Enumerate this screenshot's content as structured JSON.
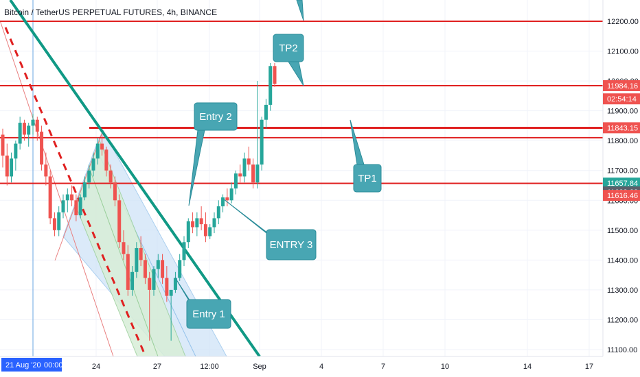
{
  "title": "Bitcoin / TetherUS PERPETUAL FUTURES, 4h, BINANCE",
  "colors": {
    "up": "#26a69a",
    "down": "#ef5350",
    "hline": "#e02020",
    "trend": "#109985",
    "note": "#48a6b3",
    "channel_blue": "#cfe4f7",
    "channel_green": "#d8eed8",
    "channel_red": "#f7d6d6"
  },
  "chart_data": {
    "type": "candlestick",
    "x_ticks": [
      "24",
      "27",
      "12:00",
      "Sep",
      "4",
      "7",
      "10",
      "14",
      "17"
    ],
    "date_label": "21 Aug '20",
    "time_label": "00:00",
    "y_ticks": [
      "12200.00",
      "12100.00",
      "12000.00",
      "11900.00",
      "11800.00",
      "11700.00",
      "11600.00",
      "11500.00",
      "11400.00",
      "11300.00",
      "11200.00",
      "11100.00"
    ],
    "ylim": [
      11080,
      12260
    ],
    "horizontal_lines": [
      12200,
      11984,
      11843,
      11810,
      11657
    ],
    "price_labels": [
      {
        "text": "11984.16",
        "price": 11984.16,
        "color": "#ef5350"
      },
      {
        "text": "02:54:14",
        "price": 11940,
        "color": "#ef5350"
      },
      {
        "text": "11843.15",
        "price": 11843.15,
        "color": "#ef5350"
      },
      {
        "text": "11657.84",
        "price": 11657.84,
        "color": "#26a69a"
      },
      {
        "text": "11628.23",
        "price": 11628.23,
        "color": "#5d606b"
      },
      {
        "text": "11616.46",
        "price": 11616.46,
        "color": "#ef5350"
      }
    ],
    "annotations": [
      "TP2",
      "Entry 2",
      "TP1",
      "ENTRY 3",
      "Entry 1"
    ],
    "candles": [
      [
        11820,
        11840,
        11710,
        11750
      ],
      [
        11750,
        11790,
        11650,
        11680
      ],
      [
        11680,
        11760,
        11660,
        11740
      ],
      [
        11740,
        11800,
        11700,
        11790
      ],
      [
        11790,
        11880,
        11770,
        11860
      ],
      [
        11860,
        11870,
        11800,
        11820
      ],
      [
        11820,
        11860,
        11780,
        11850
      ],
      [
        11850,
        11890,
        11820,
        11870
      ],
      [
        11870,
        11880,
        11800,
        11830
      ],
      [
        11830,
        11850,
        11700,
        11720
      ],
      [
        11720,
        11760,
        11650,
        11680
      ],
      [
        11680,
        11700,
        11520,
        11540
      ],
      [
        11540,
        11560,
        11480,
        11500
      ],
      [
        11500,
        11580,
        11480,
        11560
      ],
      [
        11560,
        11620,
        11540,
        11600
      ],
      [
        11600,
        11640,
        11560,
        11620
      ],
      [
        11620,
        11650,
        11580,
        11600
      ],
      [
        11600,
        11620,
        11530,
        11550
      ],
      [
        11550,
        11620,
        11540,
        11610
      ],
      [
        11610,
        11680,
        11600,
        11660
      ],
      [
        11660,
        11720,
        11640,
        11700
      ],
      [
        11700,
        11760,
        11680,
        11740
      ],
      [
        11740,
        11810,
        11720,
        11790
      ],
      [
        11790,
        11820,
        11750,
        11770
      ],
      [
        11770,
        11780,
        11680,
        11700
      ],
      [
        11700,
        11720,
        11640,
        11660
      ],
      [
        11660,
        11680,
        11580,
        11600
      ],
      [
        11600,
        11620,
        11440,
        11460
      ],
      [
        11460,
        11500,
        11400,
        11420
      ],
      [
        11420,
        11450,
        11280,
        11300
      ],
      [
        11300,
        11380,
        11280,
        11360
      ],
      [
        11360,
        11460,
        11340,
        11440
      ],
      [
        11440,
        11480,
        11380,
        11400
      ],
      [
        11400,
        11420,
        11320,
        11340
      ],
      [
        11340,
        11360,
        11130,
        11300
      ],
      [
        11300,
        11380,
        11280,
        11370
      ],
      [
        11370,
        11420,
        11340,
        11400
      ],
      [
        11400,
        11420,
        11320,
        11340
      ],
      [
        11340,
        11380,
        11260,
        11280
      ],
      [
        11280,
        11300,
        11130,
        11300
      ],
      [
        11300,
        11360,
        11290,
        11340
      ],
      [
        11340,
        11420,
        11330,
        11400
      ],
      [
        11400,
        11480,
        11380,
        11460
      ],
      [
        11460,
        11540,
        11440,
        11530
      ],
      [
        11530,
        11560,
        11490,
        11510
      ],
      [
        11510,
        11560,
        11480,
        11540
      ],
      [
        11540,
        11580,
        11500,
        11520
      ],
      [
        11520,
        11560,
        11460,
        11480
      ],
      [
        11480,
        11520,
        11470,
        11510
      ],
      [
        11510,
        11560,
        11490,
        11540
      ],
      [
        11540,
        11600,
        11520,
        11580
      ],
      [
        11580,
        11620,
        11560,
        11610
      ],
      [
        11610,
        11640,
        11580,
        11600
      ],
      [
        11600,
        11660,
        11590,
        11640
      ],
      [
        11640,
        11700,
        11620,
        11690
      ],
      [
        11690,
        11720,
        11660,
        11680
      ],
      [
        11680,
        11760,
        11660,
        11740
      ],
      [
        11740,
        11780,
        11700,
        11720
      ],
      [
        11720,
        11740,
        11640,
        11660
      ],
      [
        11660,
        12000,
        11640,
        11720
      ],
      [
        11720,
        11880,
        11700,
        11870
      ],
      [
        11870,
        11940,
        11840,
        11920
      ],
      [
        11920,
        12060,
        11900,
        12050
      ],
      [
        12050,
        12060,
        11980,
        11990
      ]
    ]
  }
}
